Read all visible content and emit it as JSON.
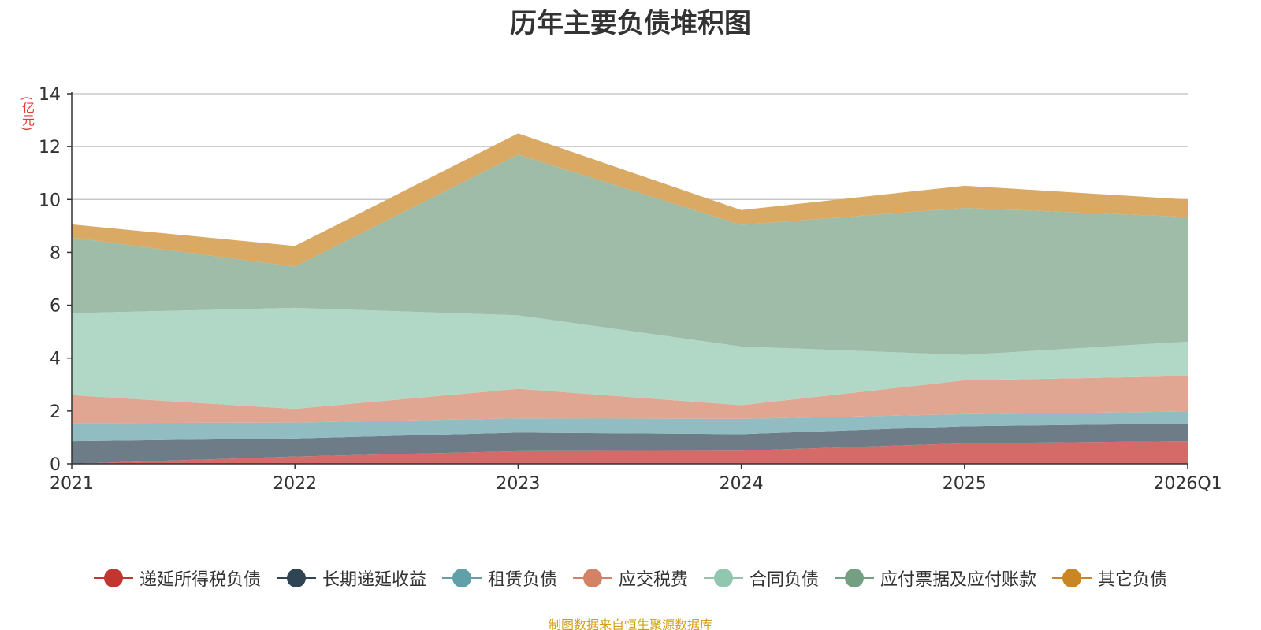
{
  "chart_data": {
    "type": "area",
    "stacked": true,
    "title": "历年主要负债堆积图",
    "ylabel": "(亿元)",
    "xlabel": "",
    "categories": [
      "2021",
      "2022",
      "2023",
      "2024",
      "2025",
      "2026Q1"
    ],
    "ylim": [
      0,
      14
    ],
    "yticks": [
      0,
      2,
      4,
      6,
      8,
      10,
      12,
      14
    ],
    "grid": true,
    "legend_position": "bottom",
    "series": [
      {
        "name": "递延所得税负债",
        "color": "#c23531",
        "fill": "#d56b69",
        "values": [
          0.0,
          0.28,
          0.48,
          0.5,
          0.78,
          0.86
        ]
      },
      {
        "name": "长期递延收益",
        "color": "#2f4554",
        "fill": "#6e7c87",
        "values": [
          0.86,
          0.68,
          0.7,
          0.62,
          0.64,
          0.66
        ]
      },
      {
        "name": "租赁负债",
        "color": "#61a0a8",
        "fill": "#90bcc2",
        "values": [
          0.68,
          0.6,
          0.54,
          0.58,
          0.46,
          0.46
        ]
      },
      {
        "name": "应交税费",
        "color": "#d48265",
        "fill": "#e1a692",
        "values": [
          1.06,
          0.52,
          1.12,
          0.52,
          1.28,
          1.34
        ]
      },
      {
        "name": "合同负债",
        "color": "#91c7ae",
        "fill": "#b1d8c6",
        "values": [
          3.1,
          3.82,
          2.78,
          2.22,
          0.96,
          1.3
        ]
      },
      {
        "name": "应付票据及应付账款",
        "color": "#749f83",
        "fill": "#9ebca8",
        "values": [
          2.86,
          1.56,
          6.08,
          4.6,
          5.56,
          4.72
        ]
      },
      {
        "name": "其它负债",
        "color": "#ca8622",
        "fill": "#daa964",
        "values": [
          0.5,
          0.78,
          0.8,
          0.56,
          0.84,
          0.66
        ]
      }
    ]
  },
  "source_note": "制图数据来自恒生聚源数据库"
}
